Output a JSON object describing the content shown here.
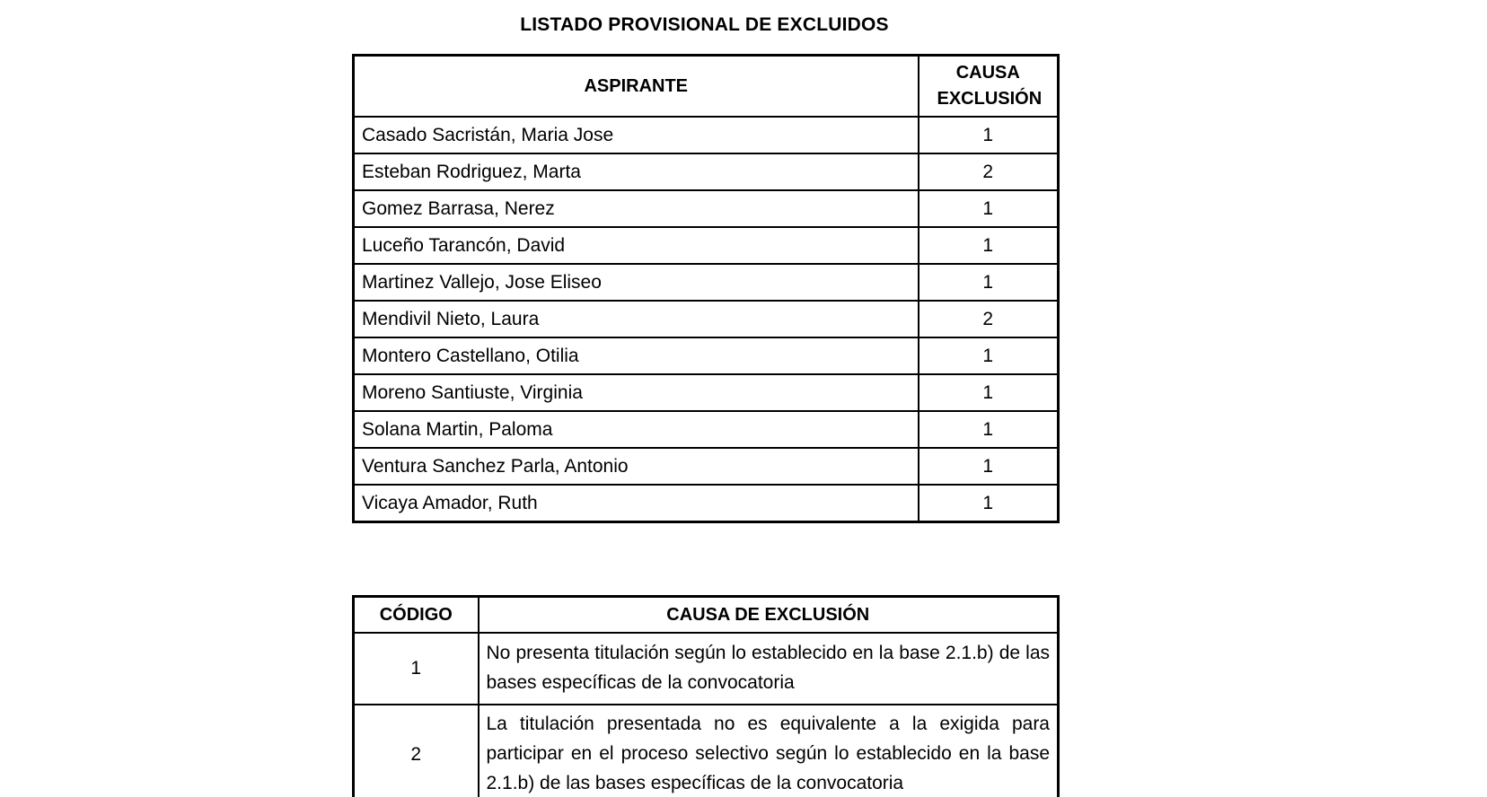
{
  "title": "LISTADO PROVISIONAL DE EXCLUIDOS",
  "colors": {
    "text": "#000000",
    "background": "#ffffff",
    "border": "#000000"
  },
  "excluded_table": {
    "headers": {
      "aspirante": "ASPIRANTE",
      "causa": "CAUSA EXCLUSIÓN"
    },
    "rows": [
      {
        "name": "Casado Sacristán, Maria Jose",
        "causa": "1"
      },
      {
        "name": "Esteban Rodriguez, Marta",
        "causa": "2"
      },
      {
        "name": "Gomez Barrasa, Nerez",
        "causa": "1"
      },
      {
        "name": "Luceño Tarancón, David",
        "causa": "1"
      },
      {
        "name": "Martinez Vallejo, Jose Eliseo",
        "causa": "1"
      },
      {
        "name": "Mendivil Nieto, Laura",
        "causa": "2"
      },
      {
        "name": "Montero Castellano, Otilia",
        "causa": "1"
      },
      {
        "name": "Moreno Santiuste, Virginia",
        "causa": "1"
      },
      {
        "name": "Solana Martin, Paloma",
        "causa": "1"
      },
      {
        "name": "Ventura Sanchez Parla, Antonio",
        "causa": "1"
      },
      {
        "name": "Vicaya Amador, Ruth",
        "causa": "1"
      }
    ]
  },
  "codes_table": {
    "headers": {
      "codigo": "CÓDIGO",
      "causa": "CAUSA DE EXCLUSIÓN"
    },
    "rows": [
      {
        "code": "1",
        "description": "No presenta titulación según lo establecido en la base 2.1.b) de las bases específicas de la convocatoria"
      },
      {
        "code": "2",
        "description": "La titulación presentada no es equivalente a la exigida para participar en el proceso selectivo según lo establecido en la base 2.1.b) de las bases específicas de la convocatoria"
      }
    ]
  }
}
